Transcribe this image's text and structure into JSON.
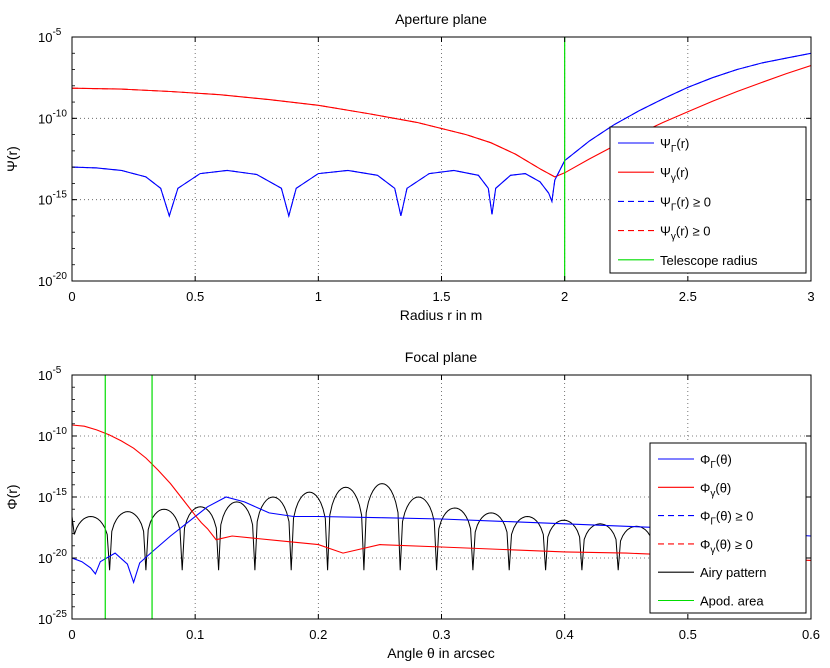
{
  "chart_data": [
    {
      "type": "line",
      "title": "Aperture plane",
      "xlabel": "Radius r in m",
      "ylabel": "Ψ(r)",
      "xlim": [
        0,
        3
      ],
      "ylim_log10": [
        -20,
        -5
      ],
      "xticks": [
        "0",
        "0.5",
        "1",
        "1.5",
        "2",
        "2.5",
        "3"
      ],
      "yticks": [
        {
          "base": "10",
          "exp": "-5"
        },
        {
          "base": "10",
          "exp": "-10"
        },
        {
          "base": "10",
          "exp": "-15"
        },
        {
          "base": "10",
          "exp": "-20"
        }
      ],
      "grid": true,
      "legend_position": "right",
      "legend": [
        {
          "main": "Ψ",
          "sub": "Γ",
          "rest": "(r)",
          "color": "#0000ff",
          "dash": false
        },
        {
          "main": "Ψ",
          "sub": "γ",
          "rest": "(r)",
          "color": "#ff0000",
          "dash": false
        },
        {
          "main": "Ψ",
          "sub": "Γ",
          "rest": "(r) ≥ 0",
          "color": "#0000ff",
          "dash": true
        },
        {
          "main": "Ψ",
          "sub": "γ",
          "rest": "(r) ≥ 0",
          "color": "#ff0000",
          "dash": true
        },
        {
          "main": "Telescope radius",
          "sub": "",
          "rest": "",
          "color": "#00dd00",
          "dash": false
        }
      ],
      "series": [
        {
          "name": "Psi_Gamma(r)",
          "color": "#0000ff",
          "x": [
            0,
            0.1,
            0.2,
            0.3,
            0.36,
            0.395,
            0.43,
            0.52,
            0.63,
            0.75,
            0.85,
            0.88,
            0.91,
            1.0,
            1.12,
            1.24,
            1.31,
            1.335,
            1.36,
            1.45,
            1.55,
            1.65,
            1.69,
            1.705,
            1.72,
            1.78,
            1.84,
            1.9,
            1.935,
            1.948,
            1.96,
            2.0,
            2.1,
            2.2,
            2.3,
            2.4,
            2.5,
            2.6,
            2.7,
            2.8,
            2.9,
            3.0
          ],
          "log10y": [
            -13.0,
            -13.05,
            -13.2,
            -13.6,
            -14.3,
            -16.0,
            -14.3,
            -13.4,
            -13.2,
            -13.45,
            -14.3,
            -16.0,
            -14.3,
            -13.4,
            -13.2,
            -13.5,
            -14.3,
            -16.0,
            -14.3,
            -13.4,
            -13.2,
            -13.5,
            -14.3,
            -15.9,
            -14.3,
            -13.5,
            -13.4,
            -13.9,
            -14.6,
            -15.1,
            -13.8,
            -12.6,
            -11.4,
            -10.4,
            -9.55,
            -8.8,
            -8.1,
            -7.5,
            -7.0,
            -6.6,
            -6.3,
            -6.0
          ]
        },
        {
          "name": "Psi_gamma(r)",
          "color": "#ff0000",
          "x": [
            0,
            0.2,
            0.4,
            0.6,
            0.8,
            1.0,
            1.2,
            1.4,
            1.6,
            1.7,
            1.8,
            1.9,
            1.96,
            2.0,
            2.1,
            2.2,
            2.3,
            2.4,
            2.5,
            2.6,
            2.7,
            2.8,
            2.9,
            3.0
          ],
          "log10y": [
            -8.15,
            -8.2,
            -8.35,
            -8.55,
            -8.85,
            -9.2,
            -9.7,
            -10.25,
            -11.0,
            -11.5,
            -12.2,
            -13.1,
            -13.6,
            -13.35,
            -12.5,
            -11.7,
            -10.95,
            -10.25,
            -9.6,
            -8.95,
            -8.35,
            -7.8,
            -7.25,
            -6.75
          ]
        },
        {
          "name": "Psi_Gamma(r) >= 0",
          "color": "#0000ff",
          "dash": true,
          "x": [
            0,
            0.1,
            0.2,
            0.3,
            0.36,
            0.395,
            0.43,
            0.52,
            0.63,
            0.75,
            0.85,
            0.88,
            0.91,
            1.0,
            1.12,
            1.24,
            1.31,
            1.335,
            1.36,
            1.45,
            1.55,
            1.65,
            1.69,
            1.705,
            1.72,
            1.78,
            1.84,
            1.9,
            1.935,
            1.948,
            1.96,
            2.0,
            2.1,
            2.2,
            2.3,
            2.4,
            2.5,
            2.6,
            2.7,
            2.8,
            2.9,
            3.0
          ],
          "log10y": [
            -13.0,
            -13.05,
            -13.2,
            -13.6,
            -14.3,
            -16.0,
            -14.3,
            -13.4,
            -13.2,
            -13.45,
            -14.3,
            -16.0,
            -14.3,
            -13.4,
            -13.2,
            -13.5,
            -14.3,
            -16.0,
            -14.3,
            -13.4,
            -13.2,
            -13.5,
            -14.3,
            -15.9,
            -14.3,
            -13.5,
            -13.4,
            -13.9,
            -14.6,
            -15.1,
            -13.8,
            -12.6,
            -11.4,
            -10.4,
            -9.55,
            -8.8,
            -8.1,
            -7.5,
            -7.0,
            -6.6,
            -6.3,
            -6.0
          ]
        },
        {
          "name": "Psi_gamma(r) >= 0",
          "color": "#ff0000",
          "dash": true,
          "x": [
            0,
            0.2,
            0.4,
            0.6,
            0.8,
            1.0,
            1.2,
            1.4,
            1.6,
            1.7,
            1.8,
            1.9,
            1.96
          ],
          "log10y": [
            -8.15,
            -8.2,
            -8.35,
            -8.55,
            -8.85,
            -9.2,
            -9.7,
            -10.25,
            -11.0,
            -11.5,
            -12.2,
            -13.1,
            -13.6
          ]
        }
      ],
      "vlines": [
        {
          "x": 2.0,
          "color": "#00dd00"
        }
      ]
    },
    {
      "type": "line",
      "title": "Focal plane",
      "xlabel": "Angle θ in arcsec",
      "ylabel": "Φ(r)",
      "xlim": [
        0,
        0.6
      ],
      "ylim_log10": [
        -25,
        -5
      ],
      "xticks": [
        "0",
        "0.1",
        "0.2",
        "0.3",
        "0.4",
        "0.5",
        "0.6"
      ],
      "yticks": [
        {
          "base": "10",
          "exp": "-5"
        },
        {
          "base": "10",
          "exp": "-10"
        },
        {
          "base": "10",
          "exp": "-15"
        },
        {
          "base": "10",
          "exp": "-20"
        },
        {
          "base": "10",
          "exp": "-25"
        }
      ],
      "grid": true,
      "legend_position": "right",
      "legend": [
        {
          "main": "Φ",
          "sub": "Γ",
          "rest": "(θ)",
          "color": "#0000ff",
          "dash": false
        },
        {
          "main": "Φ",
          "sub": "γ",
          "rest": "(θ)",
          "color": "#ff0000",
          "dash": false
        },
        {
          "main": "Φ",
          "sub": "Γ",
          "rest": "(θ) ≥ 0",
          "color": "#0000ff",
          "dash": true
        },
        {
          "main": "Φ",
          "sub": "γ",
          "rest": "(θ) ≥ 0",
          "color": "#ff0000",
          "dash": true
        },
        {
          "main": "Airy pattern",
          "sub": "",
          "rest": "",
          "color": "#000000",
          "dash": false
        },
        {
          "main": "Apod. area",
          "sub": "",
          "rest": "",
          "color": "#00dd00",
          "dash": false
        }
      ],
      "series": [
        {
          "name": "Phi_Gamma(theta)",
          "color": "#0000ff",
          "x": [
            0,
            0.008,
            0.015,
            0.019,
            0.023,
            0.035,
            0.045,
            0.05,
            0.055,
            0.065,
            0.08,
            0.095,
            0.11,
            0.125,
            0.14,
            0.16,
            0.18,
            0.2,
            0.25,
            0.3,
            0.35,
            0.4,
            0.45,
            0.5,
            0.55,
            0.6
          ],
          "log10y": [
            -20.0,
            -20.3,
            -20.8,
            -21.3,
            -20.3,
            -19.6,
            -20.5,
            -22.0,
            -20.4,
            -19.5,
            -18.2,
            -17.0,
            -15.8,
            -15.0,
            -15.4,
            -16.3,
            -16.6,
            -16.6,
            -16.7,
            -16.8,
            -17.0,
            -17.2,
            -17.4,
            -17.6,
            -17.9,
            -18.2
          ]
        },
        {
          "name": "Phi_gamma(theta)",
          "color": "#ff0000",
          "x": [
            0,
            0.01,
            0.02,
            0.03,
            0.04,
            0.05,
            0.06,
            0.07,
            0.08,
            0.09,
            0.1,
            0.105,
            0.11,
            0.117,
            0.13,
            0.15,
            0.17,
            0.2,
            0.22,
            0.25,
            0.3,
            0.35,
            0.4,
            0.45,
            0.5,
            0.55,
            0.6
          ],
          "log10y": [
            -9.1,
            -9.2,
            -9.5,
            -9.9,
            -10.4,
            -11.0,
            -11.8,
            -12.8,
            -13.9,
            -15.2,
            -16.5,
            -17.1,
            -17.6,
            -18.5,
            -18.2,
            -18.4,
            -18.6,
            -18.9,
            -19.6,
            -18.9,
            -19.1,
            -19.3,
            -19.5,
            -19.6,
            -19.8,
            -20.0,
            -20.2
          ]
        },
        {
          "name": "Airy pattern",
          "color": "#000000",
          "x": [],
          "log10y": []
        }
      ],
      "airy": {
        "first_zero": 0.0305,
        "spacing": 0.0295,
        "count": 20,
        "peaks_log10": [
          -16.6,
          -16.2,
          -16.0,
          -15.8,
          -15.4,
          -15.0,
          -14.6,
          -14.2,
          -13.9,
          -15.0,
          -15.9,
          -16.3,
          -16.6,
          -16.9,
          -17.2,
          -17.4,
          -17.6,
          -17.8,
          -18.0,
          -18.2
        ],
        "lobe_centers": [
          0.015,
          0.046,
          0.076,
          0.105,
          0.135,
          0.165,
          0.2,
          0.235,
          0.265,
          0.295,
          0.325,
          0.355,
          0.385,
          0.415,
          0.445,
          0.475,
          0.505,
          0.535,
          0.565,
          0.595
        ],
        "zero_log10": -21.0
      },
      "vlines": [
        {
          "x": 0.027,
          "color": "#00dd00"
        },
        {
          "x": 0.065,
          "color": "#00dd00"
        }
      ]
    }
  ]
}
